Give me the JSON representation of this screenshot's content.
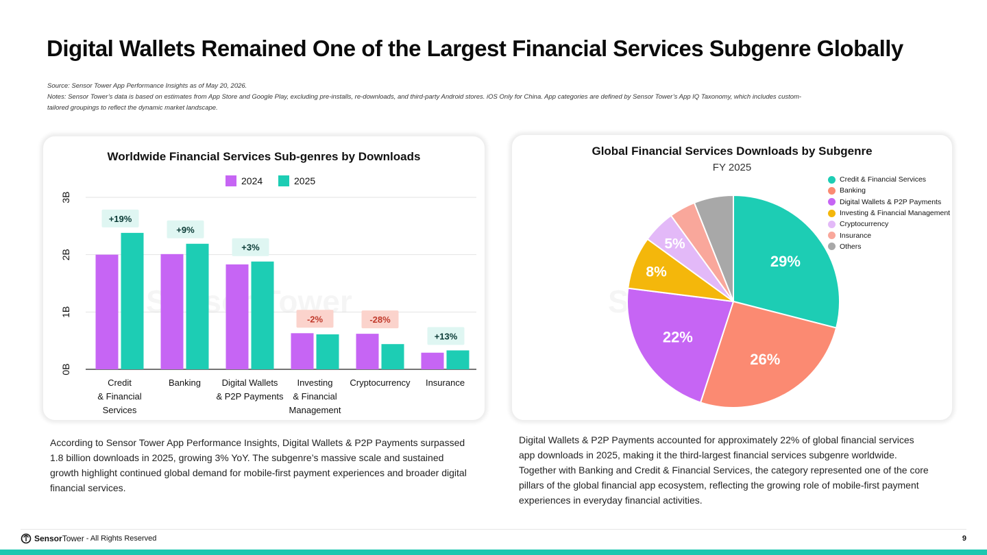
{
  "page": {
    "title": "Digital Wallets Remained One of the Largest Financial Services Subgenre Globally",
    "source": "Source: Sensor Tower App Performance Insights as of May 20, 2026.",
    "notes_line1": "Notes: Sensor Tower’s data is based on estimates from App Store and Google Play, excluding pre-installs, re-downloads, and third-party Android stores. iOS Only for China. App categories are defined by Sensor Tower’s App IQ Taxonomy, which includes custom-",
    "notes_line2": "tailored groupings to reflect the dynamic market landscape.",
    "left_text": "According to Sensor Tower App Performance Insights, Digital Wallets & P2P Payments surpassed 1.8 billion downloads in 2025, growing 3% YoY. The subgenre’s massive scale and sustained growth highlight continued global demand for mobile-first payment experiences and broader digital financial services.",
    "right_text": "Digital Wallets & P2P Payments accounted for approximately 22% of global financial services app downloads in 2025, making it the third-largest financial services subgenre worldwide. Together with Banking and Credit & Financial Services, the category represented one of the core pillars of the global financial app ecosystem, reflecting the growing role of mobile-first payment experiences in everyday financial activities.",
    "footer_brand_bold": "Sensor",
    "footer_brand_light": "Tower",
    "footer_rights": "- All Rights Reserved",
    "page_number": "9",
    "watermark": "Sensor Tower",
    "colors": {
      "c2024": "#c665f4",
      "c2025": "#1dcdb4",
      "pos_badge": "#dff6f2",
      "neg_badge": "#fbd3cc",
      "accent_bar": "#1dc7b0"
    }
  },
  "chart_data": [
    {
      "type": "bar",
      "title": "Worldwide Financial Services Sub-genres by Downloads",
      "categories": [
        [
          "Credit",
          "& Financial",
          "Services"
        ],
        [
          "Banking"
        ],
        [
          "Digital Wallets",
          "& P2P Payments"
        ],
        [
          "Investing",
          "& Financial",
          "Management"
        ],
        [
          "Cryptocurrency"
        ],
        [
          "Insurance"
        ]
      ],
      "series": [
        {
          "name": "2024",
          "color": "#c665f4",
          "values": [
            2.0,
            2.01,
            1.83,
            0.63,
            0.62,
            0.29
          ]
        },
        {
          "name": "2025",
          "color": "#1dcdb4",
          "values": [
            2.38,
            2.19,
            1.88,
            0.61,
            0.44,
            0.33
          ]
        }
      ],
      "annotations": [
        "+19%",
        "+9%",
        "+3%",
        "-2%",
        "-28%",
        "+13%"
      ],
      "y_ticks": [
        "0B",
        "1B",
        "2B",
        "3B"
      ],
      "ylim": [
        0,
        3
      ],
      "grid": true,
      "legend": "top-center"
    },
    {
      "type": "pie",
      "title": "Global Financial Services Downloads by Subgenre",
      "subtitle": "FY 2025",
      "slices": [
        {
          "label": "Credit & Financial Services",
          "value": 29,
          "text": "29%",
          "color": "#1dcdb4"
        },
        {
          "label": "Banking",
          "value": 26,
          "text": "26%",
          "color": "#fb8a72"
        },
        {
          "label": "Digital Wallets & P2P Payments",
          "value": 22,
          "text": "22%",
          "color": "#c665f4"
        },
        {
          "label": "Investing & Financial Management",
          "value": 8,
          "text": "8%",
          "color": "#f4b70b"
        },
        {
          "label": "Cryptocurrency",
          "value": 5,
          "text": "5%",
          "color": "#e3b9f8"
        },
        {
          "label": "Insurance",
          "value": 4,
          "text": "",
          "color": "#f9a79b"
        },
        {
          "label": "Others",
          "value": 6,
          "text": "",
          "color": "#a8a8a8"
        }
      ],
      "legend": "right"
    }
  ]
}
